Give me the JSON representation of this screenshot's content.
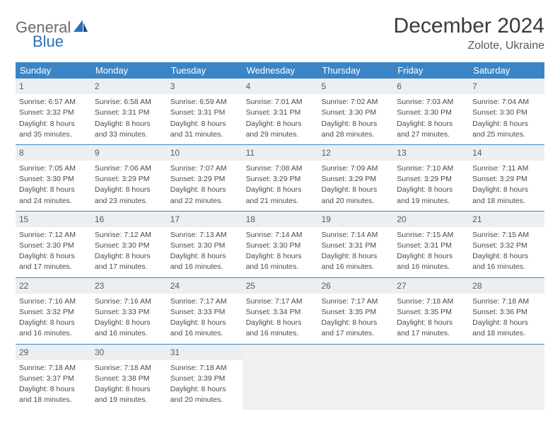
{
  "logo": {
    "part1": "General",
    "part2": "Blue"
  },
  "title": "December 2024",
  "subtitle": "Zolote, Ukraine",
  "day_headers": [
    "Sunday",
    "Monday",
    "Tuesday",
    "Wednesday",
    "Thursday",
    "Friday",
    "Saturday"
  ],
  "colors": {
    "header_bar": "#3b85c6",
    "daynum_bg": "#eceff1",
    "text": "#3a3a3a",
    "logo_blue": "#2f6fb5",
    "logo_gray": "#6b6b6b"
  },
  "weeks": [
    [
      {
        "n": "1",
        "sr": "Sunrise: 6:57 AM",
        "ss": "Sunset: 3:32 PM",
        "d1": "Daylight: 8 hours",
        "d2": "and 35 minutes."
      },
      {
        "n": "2",
        "sr": "Sunrise: 6:58 AM",
        "ss": "Sunset: 3:31 PM",
        "d1": "Daylight: 8 hours",
        "d2": "and 33 minutes."
      },
      {
        "n": "3",
        "sr": "Sunrise: 6:59 AM",
        "ss": "Sunset: 3:31 PM",
        "d1": "Daylight: 8 hours",
        "d2": "and 31 minutes."
      },
      {
        "n": "4",
        "sr": "Sunrise: 7:01 AM",
        "ss": "Sunset: 3:31 PM",
        "d1": "Daylight: 8 hours",
        "d2": "and 29 minutes."
      },
      {
        "n": "5",
        "sr": "Sunrise: 7:02 AM",
        "ss": "Sunset: 3:30 PM",
        "d1": "Daylight: 8 hours",
        "d2": "and 28 minutes."
      },
      {
        "n": "6",
        "sr": "Sunrise: 7:03 AM",
        "ss": "Sunset: 3:30 PM",
        "d1": "Daylight: 8 hours",
        "d2": "and 27 minutes."
      },
      {
        "n": "7",
        "sr": "Sunrise: 7:04 AM",
        "ss": "Sunset: 3:30 PM",
        "d1": "Daylight: 8 hours",
        "d2": "and 25 minutes."
      }
    ],
    [
      {
        "n": "8",
        "sr": "Sunrise: 7:05 AM",
        "ss": "Sunset: 3:30 PM",
        "d1": "Daylight: 8 hours",
        "d2": "and 24 minutes."
      },
      {
        "n": "9",
        "sr": "Sunrise: 7:06 AM",
        "ss": "Sunset: 3:29 PM",
        "d1": "Daylight: 8 hours",
        "d2": "and 23 minutes."
      },
      {
        "n": "10",
        "sr": "Sunrise: 7:07 AM",
        "ss": "Sunset: 3:29 PM",
        "d1": "Daylight: 8 hours",
        "d2": "and 22 minutes."
      },
      {
        "n": "11",
        "sr": "Sunrise: 7:08 AM",
        "ss": "Sunset: 3:29 PM",
        "d1": "Daylight: 8 hours",
        "d2": "and 21 minutes."
      },
      {
        "n": "12",
        "sr": "Sunrise: 7:09 AM",
        "ss": "Sunset: 3:29 PM",
        "d1": "Daylight: 8 hours",
        "d2": "and 20 minutes."
      },
      {
        "n": "13",
        "sr": "Sunrise: 7:10 AM",
        "ss": "Sunset: 3:29 PM",
        "d1": "Daylight: 8 hours",
        "d2": "and 19 minutes."
      },
      {
        "n": "14",
        "sr": "Sunrise: 7:11 AM",
        "ss": "Sunset: 3:29 PM",
        "d1": "Daylight: 8 hours",
        "d2": "and 18 minutes."
      }
    ],
    [
      {
        "n": "15",
        "sr": "Sunrise: 7:12 AM",
        "ss": "Sunset: 3:30 PM",
        "d1": "Daylight: 8 hours",
        "d2": "and 17 minutes."
      },
      {
        "n": "16",
        "sr": "Sunrise: 7:12 AM",
        "ss": "Sunset: 3:30 PM",
        "d1": "Daylight: 8 hours",
        "d2": "and 17 minutes."
      },
      {
        "n": "17",
        "sr": "Sunrise: 7:13 AM",
        "ss": "Sunset: 3:30 PM",
        "d1": "Daylight: 8 hours",
        "d2": "and 16 minutes."
      },
      {
        "n": "18",
        "sr": "Sunrise: 7:14 AM",
        "ss": "Sunset: 3:30 PM",
        "d1": "Daylight: 8 hours",
        "d2": "and 16 minutes."
      },
      {
        "n": "19",
        "sr": "Sunrise: 7:14 AM",
        "ss": "Sunset: 3:31 PM",
        "d1": "Daylight: 8 hours",
        "d2": "and 16 minutes."
      },
      {
        "n": "20",
        "sr": "Sunrise: 7:15 AM",
        "ss": "Sunset: 3:31 PM",
        "d1": "Daylight: 8 hours",
        "d2": "and 16 minutes."
      },
      {
        "n": "21",
        "sr": "Sunrise: 7:15 AM",
        "ss": "Sunset: 3:32 PM",
        "d1": "Daylight: 8 hours",
        "d2": "and 16 minutes."
      }
    ],
    [
      {
        "n": "22",
        "sr": "Sunrise: 7:16 AM",
        "ss": "Sunset: 3:32 PM",
        "d1": "Daylight: 8 hours",
        "d2": "and 16 minutes."
      },
      {
        "n": "23",
        "sr": "Sunrise: 7:16 AM",
        "ss": "Sunset: 3:33 PM",
        "d1": "Daylight: 8 hours",
        "d2": "and 16 minutes."
      },
      {
        "n": "24",
        "sr": "Sunrise: 7:17 AM",
        "ss": "Sunset: 3:33 PM",
        "d1": "Daylight: 8 hours",
        "d2": "and 16 minutes."
      },
      {
        "n": "25",
        "sr": "Sunrise: 7:17 AM",
        "ss": "Sunset: 3:34 PM",
        "d1": "Daylight: 8 hours",
        "d2": "and 16 minutes."
      },
      {
        "n": "26",
        "sr": "Sunrise: 7:17 AM",
        "ss": "Sunset: 3:35 PM",
        "d1": "Daylight: 8 hours",
        "d2": "and 17 minutes."
      },
      {
        "n": "27",
        "sr": "Sunrise: 7:18 AM",
        "ss": "Sunset: 3:35 PM",
        "d1": "Daylight: 8 hours",
        "d2": "and 17 minutes."
      },
      {
        "n": "28",
        "sr": "Sunrise: 7:18 AM",
        "ss": "Sunset: 3:36 PM",
        "d1": "Daylight: 8 hours",
        "d2": "and 18 minutes."
      }
    ],
    [
      {
        "n": "29",
        "sr": "Sunrise: 7:18 AM",
        "ss": "Sunset: 3:37 PM",
        "d1": "Daylight: 8 hours",
        "d2": "and 18 minutes."
      },
      {
        "n": "30",
        "sr": "Sunrise: 7:18 AM",
        "ss": "Sunset: 3:38 PM",
        "d1": "Daylight: 8 hours",
        "d2": "and 19 minutes."
      },
      {
        "n": "31",
        "sr": "Sunrise: 7:18 AM",
        "ss": "Sunset: 3:39 PM",
        "d1": "Daylight: 8 hours",
        "d2": "and 20 minutes."
      },
      null,
      null,
      null,
      null
    ]
  ]
}
